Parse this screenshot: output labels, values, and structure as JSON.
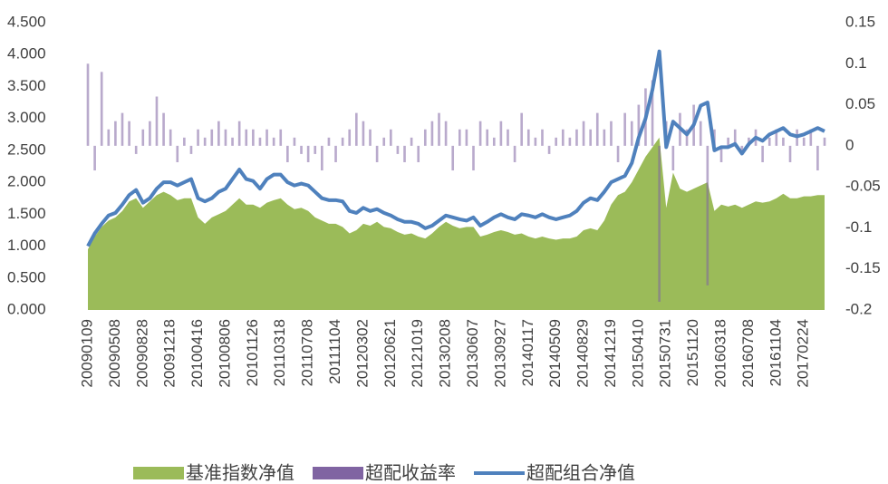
{
  "chart_data": {
    "type": "combo",
    "categories": [
      "20090109",
      null,
      null,
      null,
      "20090508",
      null,
      null,
      null,
      "20090828",
      null,
      null,
      null,
      "20091218",
      null,
      null,
      null,
      "20100416",
      null,
      null,
      null,
      "20100806",
      null,
      null,
      null,
      "20101126",
      null,
      null,
      null,
      "20110318",
      null,
      null,
      null,
      "20110708",
      null,
      null,
      null,
      "20111104",
      null,
      null,
      null,
      "20120302",
      null,
      null,
      null,
      "20120621",
      null,
      null,
      null,
      "20121019",
      null,
      null,
      null,
      "20130208",
      null,
      null,
      null,
      "20130607",
      null,
      null,
      null,
      "20130927",
      null,
      null,
      null,
      "20140117",
      null,
      null,
      null,
      "20140509",
      null,
      null,
      null,
      "20140829",
      null,
      null,
      null,
      "20141219",
      null,
      null,
      null,
      "20150410",
      null,
      null,
      null,
      "20150731",
      null,
      null,
      null,
      "20151120",
      null,
      null,
      null,
      "20160318",
      null,
      null,
      null,
      "20160708",
      null,
      null,
      null,
      "20161104",
      null,
      null,
      null,
      "20170224",
      null,
      null,
      null
    ],
    "series": [
      {
        "name": "基准指数净值",
        "type": "area",
        "color": "#9bbb59",
        "values": [
          0.95,
          1.15,
          1.3,
          1.4,
          1.45,
          1.55,
          1.7,
          1.75,
          1.6,
          1.7,
          1.8,
          1.85,
          1.8,
          1.72,
          1.75,
          1.75,
          1.45,
          1.35,
          1.45,
          1.5,
          1.55,
          1.65,
          1.75,
          1.65,
          1.65,
          1.6,
          1.68,
          1.72,
          1.75,
          1.65,
          1.58,
          1.6,
          1.55,
          1.45,
          1.4,
          1.35,
          1.35,
          1.3,
          1.2,
          1.25,
          1.35,
          1.32,
          1.38,
          1.3,
          1.28,
          1.22,
          1.18,
          1.2,
          1.15,
          1.12,
          1.2,
          1.3,
          1.38,
          1.32,
          1.28,
          1.3,
          1.3,
          1.15,
          1.18,
          1.22,
          1.25,
          1.22,
          1.18,
          1.2,
          1.15,
          1.12,
          1.15,
          1.12,
          1.1,
          1.12,
          1.12,
          1.15,
          1.25,
          1.28,
          1.25,
          1.4,
          1.65,
          1.8,
          1.85,
          2.0,
          2.2,
          2.4,
          2.55,
          2.7,
          1.6,
          2.15,
          1.9,
          1.85,
          1.9,
          1.95,
          2.0,
          1.55,
          1.65,
          1.62,
          1.65,
          1.6,
          1.65,
          1.7,
          1.68,
          1.7,
          1.75,
          1.82,
          1.75,
          1.75,
          1.78,
          1.78,
          1.8,
          1.8
        ]
      },
      {
        "name": "超配收益率",
        "type": "bar",
        "axis": "y2",
        "color": "#8064a2",
        "values": [
          0.1,
          -0.03,
          0.09,
          0.02,
          0.03,
          0.04,
          0.03,
          -0.01,
          0.02,
          0.03,
          0.06,
          0.04,
          0.02,
          -0.02,
          0.01,
          -0.01,
          0.02,
          0.01,
          0.02,
          0.03,
          0.02,
          0.01,
          0.03,
          0.02,
          0.02,
          0.01,
          0.02,
          0.01,
          0.02,
          -0.02,
          0.01,
          -0.01,
          -0.02,
          -0.01,
          -0.03,
          0.01,
          -0.02,
          0.01,
          0.02,
          0.04,
          0.03,
          0.02,
          -0.02,
          0.01,
          0.02,
          -0.01,
          -0.02,
          0.01,
          -0.02,
          0.02,
          0.03,
          0.04,
          0.03,
          -0.03,
          0.02,
          0.02,
          -0.03,
          0.03,
          0.02,
          0.01,
          0.03,
          0.02,
          -0.02,
          0.04,
          0.02,
          0.01,
          0.02,
          -0.01,
          0.01,
          0.02,
          0.01,
          0.02,
          0.03,
          0.02,
          0.04,
          0.02,
          0.03,
          -0.02,
          0.04,
          0.03,
          0.05,
          0.07,
          0.08,
          -0.19,
          0.03,
          -0.03,
          0.04,
          0.02,
          0.05,
          0.03,
          -0.17,
          0.02,
          -0.02,
          0.01,
          0.02,
          -0.01,
          0.01,
          0.02,
          -0.02,
          0.01,
          0.02,
          0.01,
          -0.02,
          0.02,
          0.01,
          0.02,
          -0.03,
          0.01
        ]
      },
      {
        "name": "超配组合净值",
        "type": "line",
        "color": "#4f81bd",
        "values": [
          1.0,
          1.2,
          1.35,
          1.48,
          1.52,
          1.65,
          1.8,
          1.88,
          1.68,
          1.75,
          1.9,
          2.0,
          2.0,
          1.95,
          2.0,
          2.05,
          1.75,
          1.7,
          1.75,
          1.85,
          1.9,
          2.05,
          2.2,
          2.05,
          2.02,
          1.9,
          2.05,
          2.12,
          2.12,
          2.0,
          1.95,
          1.98,
          1.95,
          1.85,
          1.75,
          1.72,
          1.72,
          1.7,
          1.55,
          1.52,
          1.6,
          1.55,
          1.58,
          1.52,
          1.48,
          1.42,
          1.38,
          1.38,
          1.35,
          1.28,
          1.32,
          1.4,
          1.48,
          1.45,
          1.42,
          1.4,
          1.45,
          1.32,
          1.38,
          1.45,
          1.5,
          1.45,
          1.42,
          1.5,
          1.48,
          1.45,
          1.5,
          1.45,
          1.42,
          1.45,
          1.48,
          1.55,
          1.68,
          1.75,
          1.72,
          1.85,
          2.0,
          2.05,
          2.1,
          2.3,
          2.7,
          3.0,
          3.45,
          4.05,
          2.55,
          2.95,
          2.85,
          2.75,
          2.9,
          3.2,
          3.25,
          2.5,
          2.55,
          2.55,
          2.6,
          2.45,
          2.6,
          2.7,
          2.65,
          2.75,
          2.8,
          2.85,
          2.75,
          2.72,
          2.75,
          2.8,
          2.85,
          2.8
        ]
      }
    ],
    "ylim": [
      0,
      4.5
    ],
    "yticks": [
      {
        "value": 0,
        "label": "0.000"
      },
      {
        "value": 0.5,
        "label": "0.500"
      },
      {
        "value": 1,
        "label": "1.000"
      },
      {
        "value": 1.5,
        "label": "1.500"
      },
      {
        "value": 2,
        "label": "2.000"
      },
      {
        "value": 2.5,
        "label": "2.500"
      },
      {
        "value": 3,
        "label": "3.000"
      },
      {
        "value": 3.5,
        "label": "3.500"
      },
      {
        "value": 4,
        "label": "4.000"
      },
      {
        "value": 4.5,
        "label": "4.500"
      }
    ],
    "y2lim": [
      -0.2,
      0.15
    ],
    "y2ticks": [
      -0.2,
      -0.15,
      -0.1,
      -0.05,
      0,
      0.05,
      0.1,
      0.15
    ],
    "legend": "bottom"
  }
}
